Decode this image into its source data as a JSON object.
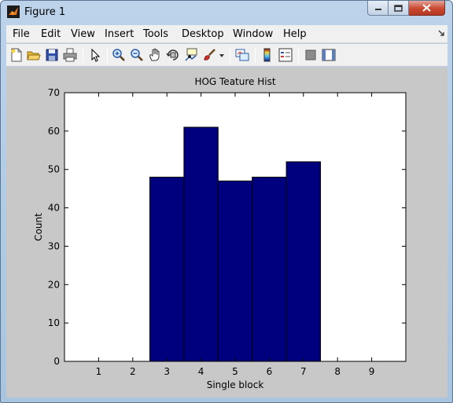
{
  "window": {
    "title": "Figure 1"
  },
  "menu": {
    "items": [
      "File",
      "Edit",
      "View",
      "Insert",
      "Tools",
      "Desktop",
      "Window",
      "Help"
    ]
  },
  "toolbar": {
    "icons": [
      "new-figure-icon",
      "open-file-icon",
      "save-icon",
      "print-icon",
      "edit-plot-arrow-icon",
      "zoom-in-icon",
      "zoom-out-icon",
      "pan-hand-icon",
      "rotate-3d-icon",
      "data-cursor-icon",
      "brush-icon",
      "brush-dropdown-icon",
      "link-plot-icon",
      "colorbar-icon",
      "legend-icon",
      "hide-plot-tools-icon",
      "show-plot-tools-icon"
    ]
  },
  "colors": {
    "bar_fill": "#00007f",
    "figure_background": "#c8c8c8",
    "axes_background": "#ffffff"
  },
  "chart_data": {
    "type": "bar",
    "title": "HOG Teature Hist",
    "xlabel": "Single block",
    "ylabel": "Count",
    "categories": [
      "1",
      "2",
      "3",
      "4",
      "5",
      "6",
      "7",
      "8",
      "9"
    ],
    "values": [
      0,
      0,
      48,
      61,
      47,
      48,
      52,
      0,
      0
    ],
    "xlim": [
      0,
      10
    ],
    "ylim": [
      0,
      70
    ],
    "yticks": [
      0,
      10,
      20,
      30,
      40,
      50,
      60,
      70
    ],
    "grid": false,
    "legend": "none"
  }
}
